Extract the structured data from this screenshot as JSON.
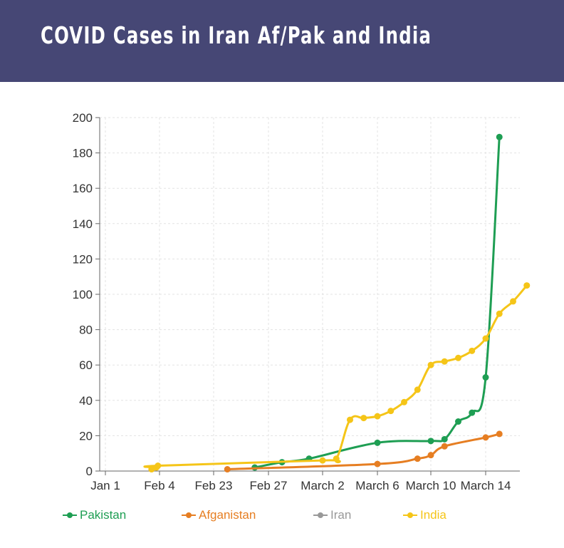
{
  "header": {
    "title": "COVID Cases in Iran Af/Pak and India"
  },
  "chart_data": {
    "type": "line",
    "title": "COVID Cases in Iran Af/Pak and India",
    "xlabel": "",
    "ylabel": "",
    "x_ticks": [
      "Jan 1",
      "Feb 4",
      "Feb 23",
      "Feb 27",
      "March 2",
      "March 6",
      "March 10",
      "March 14"
    ],
    "y_ticks": [
      0,
      20,
      40,
      60,
      80,
      100,
      120,
      140,
      160,
      180,
      200
    ],
    "ylim": [
      0,
      200
    ],
    "grid": true,
    "legend_position": "bottom",
    "series": [
      {
        "name": "Pakistan",
        "color": "#1e9e53",
        "points": [
          {
            "x": "Feb 26",
            "y": 2
          },
          {
            "x": "Feb 28",
            "y": 5
          },
          {
            "x": "March 1",
            "y": 7
          },
          {
            "x": "March 6",
            "y": 16
          },
          {
            "x": "March 10",
            "y": 17
          },
          {
            "x": "March 11",
            "y": 18
          },
          {
            "x": "March 12",
            "y": 28
          },
          {
            "x": "March 13",
            "y": 33
          },
          {
            "x": "March 14",
            "y": 53
          },
          {
            "x": "March 15",
            "y": 189
          }
        ]
      },
      {
        "name": "Afganistan",
        "color": "#e67e22",
        "points": [
          {
            "x": "Feb 24",
            "y": 1
          },
          {
            "x": "March 6",
            "y": 4
          },
          {
            "x": "March 9",
            "y": 7
          },
          {
            "x": "March 10",
            "y": 9
          },
          {
            "x": "March 11",
            "y": 14
          },
          {
            "x": "March 14",
            "y": 19
          },
          {
            "x": "March 15",
            "y": 21
          }
        ]
      },
      {
        "name": "Iran",
        "color": "#999999",
        "points": []
      },
      {
        "name": "India",
        "color": "#f5c518",
        "points": [
          {
            "x": "Jan 30",
            "y": 1
          },
          {
            "x": "Feb 2",
            "y": 2
          },
          {
            "x": "Feb 3",
            "y": 3
          },
          {
            "x": "March 2",
            "y": 6
          },
          {
            "x": "March 3",
            "y": 7
          },
          {
            "x": "March 4",
            "y": 29
          },
          {
            "x": "March 5",
            "y": 30
          },
          {
            "x": "March 6",
            "y": 31
          },
          {
            "x": "March 7",
            "y": 34
          },
          {
            "x": "March 8",
            "y": 39
          },
          {
            "x": "March 9",
            "y": 46
          },
          {
            "x": "March 10",
            "y": 60
          },
          {
            "x": "March 11",
            "y": 62
          },
          {
            "x": "March 12",
            "y": 64
          },
          {
            "x": "March 13",
            "y": 68
          },
          {
            "x": "March 14",
            "y": 75
          },
          {
            "x": "March 15",
            "y": 89
          },
          {
            "x": "March 16",
            "y": 96
          },
          {
            "x": "March 17",
            "y": 105
          }
        ]
      }
    ]
  }
}
